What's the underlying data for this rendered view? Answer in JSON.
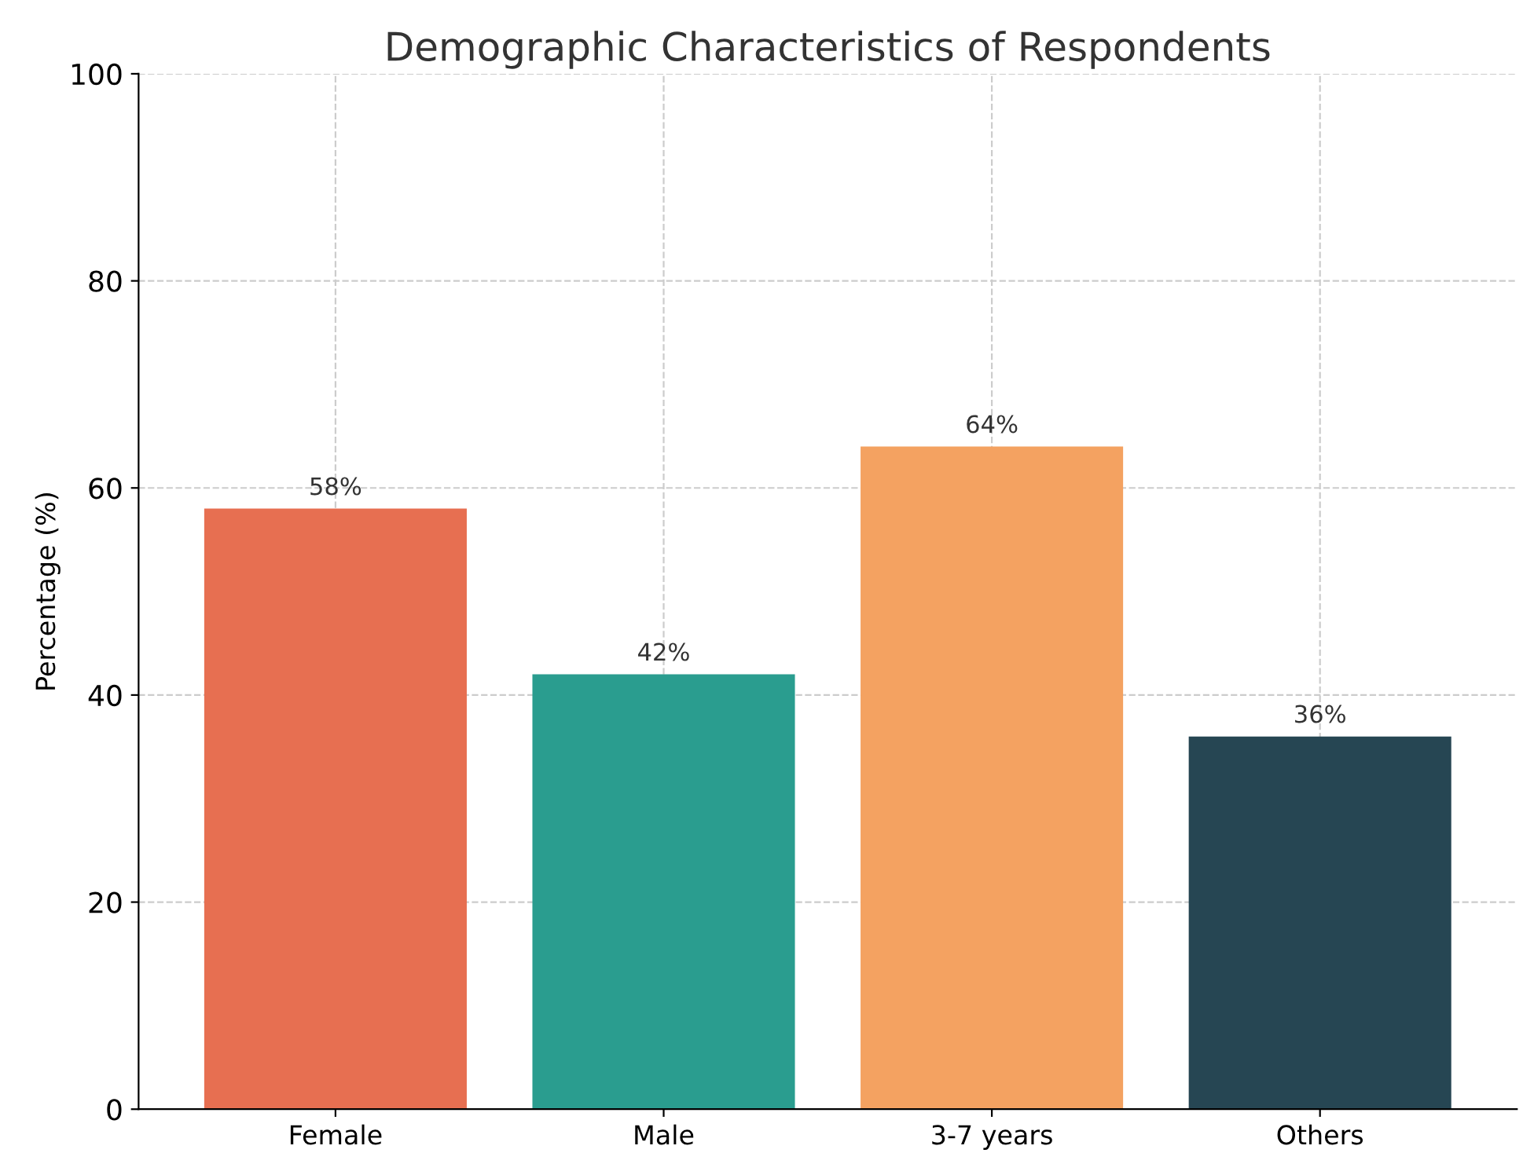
{
  "chart_data": {
    "type": "bar",
    "title": "Demographic Characteristics of Respondents",
    "ylabel": "Percentage (%)",
    "categories": [
      "Female",
      "Male",
      "3-7 years",
      "Others"
    ],
    "values": [
      58,
      42,
      64,
      36
    ],
    "colors": [
      "#e76f51",
      "#2a9d8f",
      "#f4a261",
      "#264653"
    ],
    "value_labels": [
      "58%",
      "42%",
      "64%",
      "36%"
    ],
    "ylim": [
      0,
      100
    ],
    "yticks": [
      0,
      20,
      40,
      60,
      80,
      100
    ],
    "grid": true
  }
}
